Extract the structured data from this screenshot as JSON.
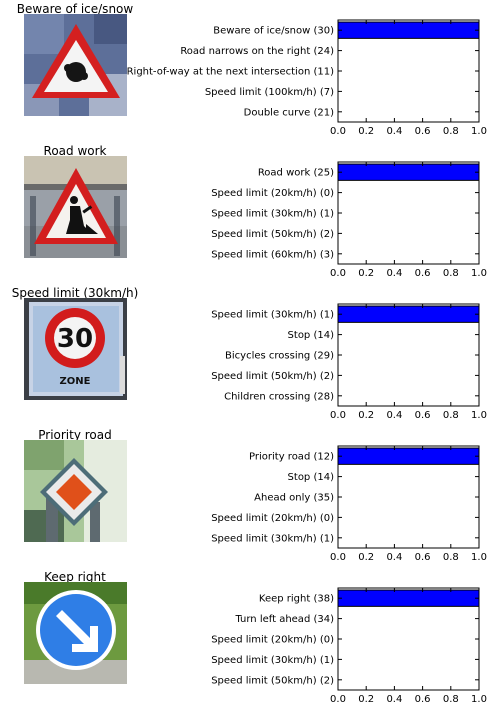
{
  "chart_data": [
    {
      "type": "bar",
      "orientation": "horizontal",
      "title": "Beware of ice/snow",
      "image": "beware-of-ice-snow-sign",
      "categories": [
        "Beware of ice/snow (30)",
        "Road narrows on the right (24)",
        "Right-of-way at the next intersection (11)",
        "Speed limit (100km/h) (7)",
        "Double curve (21)"
      ],
      "values": [
        1.0,
        0.0,
        0.0,
        0.0,
        0.0
      ],
      "xlim": [
        0.0,
        1.0
      ],
      "xticks": [
        "0.0",
        "0.2",
        "0.4",
        "0.6",
        "0.8",
        "1.0"
      ],
      "bar_color": "#0000ff",
      "grid": false
    },
    {
      "type": "bar",
      "orientation": "horizontal",
      "title": "Road work",
      "image": "road-work-sign",
      "categories": [
        "Road work (25)",
        "Speed limit (20km/h) (0)",
        "Speed limit (30km/h) (1)",
        "Speed limit (50km/h) (2)",
        "Speed limit (60km/h) (3)"
      ],
      "values": [
        1.0,
        0.0,
        0.0,
        0.0,
        0.0
      ],
      "xlim": [
        0.0,
        1.0
      ],
      "xticks": [
        "0.0",
        "0.2",
        "0.4",
        "0.6",
        "0.8",
        "1.0"
      ],
      "bar_color": "#0000ff",
      "grid": false
    },
    {
      "type": "bar",
      "orientation": "horizontal",
      "title": "Speed limit (30km/h)",
      "image": "speed-limit-30-sign",
      "sign_text": [
        "30",
        "ZONE"
      ],
      "categories": [
        "Speed limit (30km/h) (1)",
        "Stop (14)",
        "Bicycles crossing (29)",
        "Speed limit (50km/h) (2)",
        "Children crossing (28)"
      ],
      "values": [
        1.0,
        0.0,
        0.0,
        0.0,
        0.0
      ],
      "xlim": [
        0.0,
        1.0
      ],
      "xticks": [
        "0.0",
        "0.2",
        "0.4",
        "0.6",
        "0.8",
        "1.0"
      ],
      "bar_color": "#0000ff",
      "grid": false
    },
    {
      "type": "bar",
      "orientation": "horizontal",
      "title": "Priority road",
      "image": "priority-road-sign",
      "categories": [
        "Priority road (12)",
        "Stop (14)",
        "Ahead only (35)",
        "Speed limit (20km/h) (0)",
        "Speed limit (30km/h) (1)"
      ],
      "values": [
        1.0,
        0.0,
        0.0,
        0.0,
        0.0
      ],
      "xlim": [
        0.0,
        1.0
      ],
      "xticks": [
        "0.0",
        "0.2",
        "0.4",
        "0.6",
        "0.8",
        "1.0"
      ],
      "bar_color": "#0000ff",
      "grid": false
    },
    {
      "type": "bar",
      "orientation": "horizontal",
      "title": "Keep right",
      "image": "keep-right-sign",
      "categories": [
        "Keep right (38)",
        "Turn left ahead (34)",
        "Speed limit (20km/h) (0)",
        "Speed limit (30km/h) (1)",
        "Speed limit (50km/h) (2)"
      ],
      "values": [
        1.0,
        0.0,
        0.0,
        0.0,
        0.0
      ],
      "xlim": [
        0.0,
        1.0
      ],
      "xticks": [
        "0.0",
        "0.2",
        "0.4",
        "0.6",
        "0.8",
        "1.0"
      ],
      "bar_color": "#0000ff",
      "grid": false
    }
  ]
}
